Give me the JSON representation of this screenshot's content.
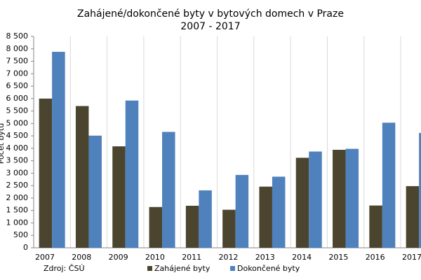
{
  "chart_data": {
    "type": "bar",
    "title": "Zahájené/dokončené byty v bytových domech v Praze",
    "subtitle": "2007 - 2017",
    "y_label": "Počet bytů",
    "source": "Zdroj: ČSÚ",
    "categories": [
      "2007",
      "2008",
      "2009",
      "2010",
      "2011",
      "2012",
      "2013",
      "2014",
      "2015",
      "2016",
      "2017"
    ],
    "series": [
      {
        "name": "Zahájené byty",
        "color": "#4b4530",
        "values": [
          6000,
          5700,
          4080,
          1640,
          1690,
          1530,
          2460,
          3620,
          3940,
          1700,
          2480
        ]
      },
      {
        "name": "Dokončené byty",
        "color": "#4f81bd",
        "values": [
          7880,
          4510,
          5920,
          4660,
          2310,
          2930,
          2860,
          3870,
          3980,
          5030,
          4620
        ]
      }
    ],
    "ylim": [
      0,
      8500
    ],
    "yticks": [
      0,
      {
        "value": 500,
        "label": "500"
      },
      {
        "value": 1000,
        "label": "1 000"
      },
      {
        "value": 1500,
        "label": "1 500"
      },
      {
        "value": 2000,
        "label": "2 000"
      },
      {
        "value": 2500,
        "label": "2 500"
      },
      {
        "value": 3000,
        "label": "3 000"
      },
      {
        "value": 3500,
        "label": "3 500"
      },
      {
        "value": 4000,
        "label": "4 000"
      },
      {
        "value": 4500,
        "label": "4 500"
      },
      {
        "value": 5000,
        "label": "5 000"
      },
      {
        "value": 5500,
        "label": "5 500"
      },
      {
        "value": 6000,
        "label": "6 000"
      },
      {
        "value": 6500,
        "label": "6 500"
      },
      {
        "value": 7000,
        "label": "7 000"
      },
      {
        "value": 7500,
        "label": "7 500"
      },
      {
        "value": 8000,
        "label": "8 000"
      },
      {
        "value": 8500,
        "label": "8 500"
      }
    ],
    "legend": "bottom"
  }
}
